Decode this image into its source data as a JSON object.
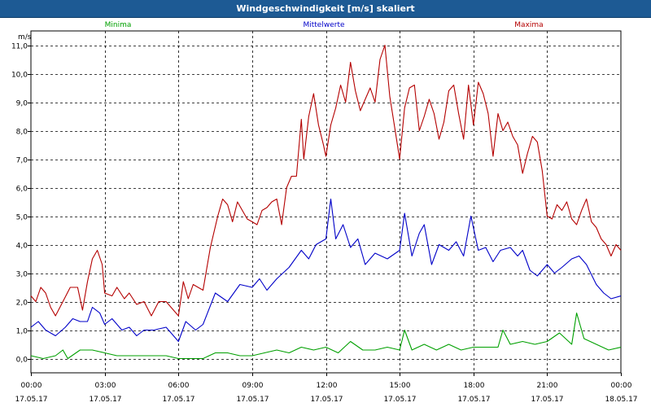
{
  "window": {
    "title": "Windgeschwindigkeit [m/s] skaliert"
  },
  "chart_data": {
    "type": "line",
    "title": "Windgeschwindigkeit [m/s] skaliert",
    "ylabel": "m/s",
    "xlabel": "",
    "xlim": [
      0,
      24
    ],
    "ylim": [
      -0.5,
      11.5
    ],
    "grid": true,
    "y_ticks": [
      "0,0",
      "1,0",
      "2,0",
      "3,0",
      "4,0",
      "5,0",
      "6,0",
      "7,0",
      "8,0",
      "9,0",
      "10,0",
      "11,0"
    ],
    "x_ticks": [
      {
        "time": "00:00",
        "date": "17.05.17"
      },
      {
        "time": "03:00",
        "date": "17.05.17"
      },
      {
        "time": "06:00",
        "date": "17.05.17"
      },
      {
        "time": "09:00",
        "date": "17.05.17"
      },
      {
        "time": "12:00",
        "date": "17.05.17"
      },
      {
        "time": "15:00",
        "date": "17.05.17"
      },
      {
        "time": "18:00",
        "date": "17.05.17"
      },
      {
        "time": "21:00",
        "date": "17.05.17"
      },
      {
        "time": "00:00",
        "date": "18.05.17"
      }
    ],
    "series": [
      {
        "name": "Minima",
        "color": "#00a000",
        "points": [
          [
            0,
            0.1
          ],
          [
            0.5,
            0.0
          ],
          [
            1,
            0.1
          ],
          [
            1.3,
            0.3
          ],
          [
            1.5,
            0.0
          ],
          [
            2,
            0.3
          ],
          [
            2.5,
            0.3
          ],
          [
            3,
            0.2
          ],
          [
            3.5,
            0.1
          ],
          [
            4,
            0.1
          ],
          [
            4.5,
            0.1
          ],
          [
            5,
            0.1
          ],
          [
            5.5,
            0.1
          ],
          [
            6,
            0.0
          ],
          [
            7,
            0.0
          ],
          [
            7.5,
            0.2
          ],
          [
            8,
            0.2
          ],
          [
            8.5,
            0.1
          ],
          [
            9,
            0.1
          ],
          [
            9.5,
            0.2
          ],
          [
            10,
            0.3
          ],
          [
            10.5,
            0.2
          ],
          [
            11,
            0.4
          ],
          [
            11.5,
            0.3
          ],
          [
            12,
            0.4
          ],
          [
            12.5,
            0.2
          ],
          [
            13,
            0.6
          ],
          [
            13.5,
            0.3
          ],
          [
            14,
            0.3
          ],
          [
            14.5,
            0.4
          ],
          [
            15,
            0.3
          ],
          [
            15.2,
            1.0
          ],
          [
            15.5,
            0.3
          ],
          [
            16,
            0.5
          ],
          [
            16.5,
            0.3
          ],
          [
            17,
            0.5
          ],
          [
            17.5,
            0.3
          ],
          [
            18,
            0.4
          ],
          [
            18.5,
            0.4
          ],
          [
            19,
            0.4
          ],
          [
            19.2,
            1.0
          ],
          [
            19.5,
            0.5
          ],
          [
            20,
            0.6
          ],
          [
            20.5,
            0.5
          ],
          [
            21,
            0.6
          ],
          [
            21.5,
            0.9
          ],
          [
            22,
            0.5
          ],
          [
            22.2,
            1.6
          ],
          [
            22.5,
            0.7
          ],
          [
            23,
            0.5
          ],
          [
            23.5,
            0.3
          ],
          [
            24,
            0.4
          ]
        ]
      },
      {
        "name": "Mittelwerte",
        "color": "#0000c8",
        "points": [
          [
            0,
            1.1
          ],
          [
            0.3,
            1.3
          ],
          [
            0.6,
            1.0
          ],
          [
            1,
            0.8
          ],
          [
            1.4,
            1.1
          ],
          [
            1.7,
            1.4
          ],
          [
            2,
            1.3
          ],
          [
            2.3,
            1.3
          ],
          [
            2.5,
            1.8
          ],
          [
            2.8,
            1.6
          ],
          [
            3,
            1.2
          ],
          [
            3.3,
            1.4
          ],
          [
            3.7,
            1.0
          ],
          [
            4,
            1.1
          ],
          [
            4.3,
            0.8
          ],
          [
            4.6,
            1.0
          ],
          [
            5,
            1.0
          ],
          [
            5.5,
            1.1
          ],
          [
            6,
            0.6
          ],
          [
            6.3,
            1.3
          ],
          [
            6.7,
            1.0
          ],
          [
            7,
            1.2
          ],
          [
            7.5,
            2.3
          ],
          [
            8,
            2.0
          ],
          [
            8.5,
            2.6
          ],
          [
            9,
            2.5
          ],
          [
            9.3,
            2.8
          ],
          [
            9.6,
            2.4
          ],
          [
            10,
            2.8
          ],
          [
            10.5,
            3.2
          ],
          [
            11,
            3.8
          ],
          [
            11.3,
            3.5
          ],
          [
            11.6,
            4.0
          ],
          [
            12,
            4.2
          ],
          [
            12.2,
            5.6
          ],
          [
            12.4,
            4.2
          ],
          [
            12.7,
            4.7
          ],
          [
            13,
            3.9
          ],
          [
            13.3,
            4.2
          ],
          [
            13.6,
            3.3
          ],
          [
            14,
            3.7
          ],
          [
            14.5,
            3.5
          ],
          [
            15,
            3.8
          ],
          [
            15.2,
            5.1
          ],
          [
            15.5,
            3.6
          ],
          [
            15.8,
            4.4
          ],
          [
            16,
            4.7
          ],
          [
            16.3,
            3.3
          ],
          [
            16.6,
            4.0
          ],
          [
            17,
            3.8
          ],
          [
            17.3,
            4.1
          ],
          [
            17.6,
            3.6
          ],
          [
            17.9,
            5.0
          ],
          [
            18.2,
            3.8
          ],
          [
            18.5,
            3.9
          ],
          [
            18.8,
            3.4
          ],
          [
            19.1,
            3.8
          ],
          [
            19.5,
            3.9
          ],
          [
            19.8,
            3.6
          ],
          [
            20,
            3.8
          ],
          [
            20.3,
            3.1
          ],
          [
            20.6,
            2.9
          ],
          [
            21,
            3.3
          ],
          [
            21.3,
            3.0
          ],
          [
            21.6,
            3.2
          ],
          [
            22,
            3.5
          ],
          [
            22.3,
            3.6
          ],
          [
            22.6,
            3.3
          ],
          [
            23,
            2.6
          ],
          [
            23.3,
            2.3
          ],
          [
            23.6,
            2.1
          ],
          [
            24,
            2.2
          ]
        ]
      },
      {
        "name": "Maxima",
        "color": "#b40000",
        "points": [
          [
            0,
            2.2
          ],
          [
            0.2,
            2.0
          ],
          [
            0.4,
            2.5
          ],
          [
            0.6,
            2.3
          ],
          [
            0.8,
            1.8
          ],
          [
            1,
            1.5
          ],
          [
            1.3,
            2.0
          ],
          [
            1.6,
            2.5
          ],
          [
            1.9,
            2.5
          ],
          [
            2.1,
            1.7
          ],
          [
            2.3,
            2.7
          ],
          [
            2.5,
            3.5
          ],
          [
            2.7,
            3.8
          ],
          [
            2.9,
            3.3
          ],
          [
            3,
            2.3
          ],
          [
            3.3,
            2.2
          ],
          [
            3.5,
            2.5
          ],
          [
            3.8,
            2.1
          ],
          [
            4,
            2.3
          ],
          [
            4.3,
            1.9
          ],
          [
            4.6,
            2.0
          ],
          [
            4.9,
            1.5
          ],
          [
            5.2,
            2.0
          ],
          [
            5.5,
            2.0
          ],
          [
            5.8,
            1.7
          ],
          [
            6,
            1.5
          ],
          [
            6.2,
            2.7
          ],
          [
            6.4,
            2.1
          ],
          [
            6.6,
            2.6
          ],
          [
            6.8,
            2.5
          ],
          [
            7,
            2.4
          ],
          [
            7.3,
            3.9
          ],
          [
            7.6,
            5.0
          ],
          [
            7.8,
            5.6
          ],
          [
            8,
            5.4
          ],
          [
            8.2,
            4.8
          ],
          [
            8.4,
            5.5
          ],
          [
            8.6,
            5.2
          ],
          [
            8.8,
            4.9
          ],
          [
            9,
            4.8
          ],
          [
            9.2,
            4.7
          ],
          [
            9.4,
            5.2
          ],
          [
            9.6,
            5.3
          ],
          [
            9.8,
            5.5
          ],
          [
            10,
            5.6
          ],
          [
            10.2,
            4.7
          ],
          [
            10.4,
            6.0
          ],
          [
            10.6,
            6.4
          ],
          [
            10.8,
            6.4
          ],
          [
            11,
            8.4
          ],
          [
            11.1,
            7.0
          ],
          [
            11.3,
            8.5
          ],
          [
            11.5,
            9.3
          ],
          [
            11.7,
            8.2
          ],
          [
            11.9,
            7.5
          ],
          [
            12,
            7.1
          ],
          [
            12.2,
            8.2
          ],
          [
            12.4,
            8.8
          ],
          [
            12.6,
            9.6
          ],
          [
            12.8,
            9.0
          ],
          [
            13,
            10.4
          ],
          [
            13.2,
            9.4
          ],
          [
            13.4,
            8.7
          ],
          [
            13.6,
            9.1
          ],
          [
            13.8,
            9.5
          ],
          [
            14,
            9.0
          ],
          [
            14.2,
            10.5
          ],
          [
            14.4,
            11.0
          ],
          [
            14.6,
            9.2
          ],
          [
            14.8,
            8.1
          ],
          [
            15,
            7.0
          ],
          [
            15.2,
            8.8
          ],
          [
            15.4,
            9.5
          ],
          [
            15.6,
            9.6
          ],
          [
            15.8,
            8.0
          ],
          [
            16,
            8.5
          ],
          [
            16.2,
            9.1
          ],
          [
            16.4,
            8.6
          ],
          [
            16.6,
            7.7
          ],
          [
            16.8,
            8.3
          ],
          [
            17,
            9.4
          ],
          [
            17.2,
            9.6
          ],
          [
            17.4,
            8.6
          ],
          [
            17.6,
            7.7
          ],
          [
            17.8,
            9.6
          ],
          [
            18,
            8.2
          ],
          [
            18.2,
            9.7
          ],
          [
            18.4,
            9.3
          ],
          [
            18.6,
            8.6
          ],
          [
            18.8,
            7.1
          ],
          [
            19,
            8.6
          ],
          [
            19.2,
            8.0
          ],
          [
            19.4,
            8.3
          ],
          [
            19.6,
            7.8
          ],
          [
            19.8,
            7.5
          ],
          [
            20,
            6.5
          ],
          [
            20.2,
            7.2
          ],
          [
            20.4,
            7.8
          ],
          [
            20.6,
            7.6
          ],
          [
            20.8,
            6.6
          ],
          [
            21,
            5.0
          ],
          [
            21.2,
            4.9
          ],
          [
            21.4,
            5.4
          ],
          [
            21.6,
            5.2
          ],
          [
            21.8,
            5.5
          ],
          [
            22,
            4.9
          ],
          [
            22.2,
            4.7
          ],
          [
            22.4,
            5.2
          ],
          [
            22.6,
            5.6
          ],
          [
            22.8,
            4.8
          ],
          [
            23,
            4.6
          ],
          [
            23.2,
            4.2
          ],
          [
            23.4,
            4.0
          ],
          [
            23.6,
            3.6
          ],
          [
            23.8,
            4.0
          ],
          [
            24,
            3.8
          ]
        ]
      }
    ]
  }
}
